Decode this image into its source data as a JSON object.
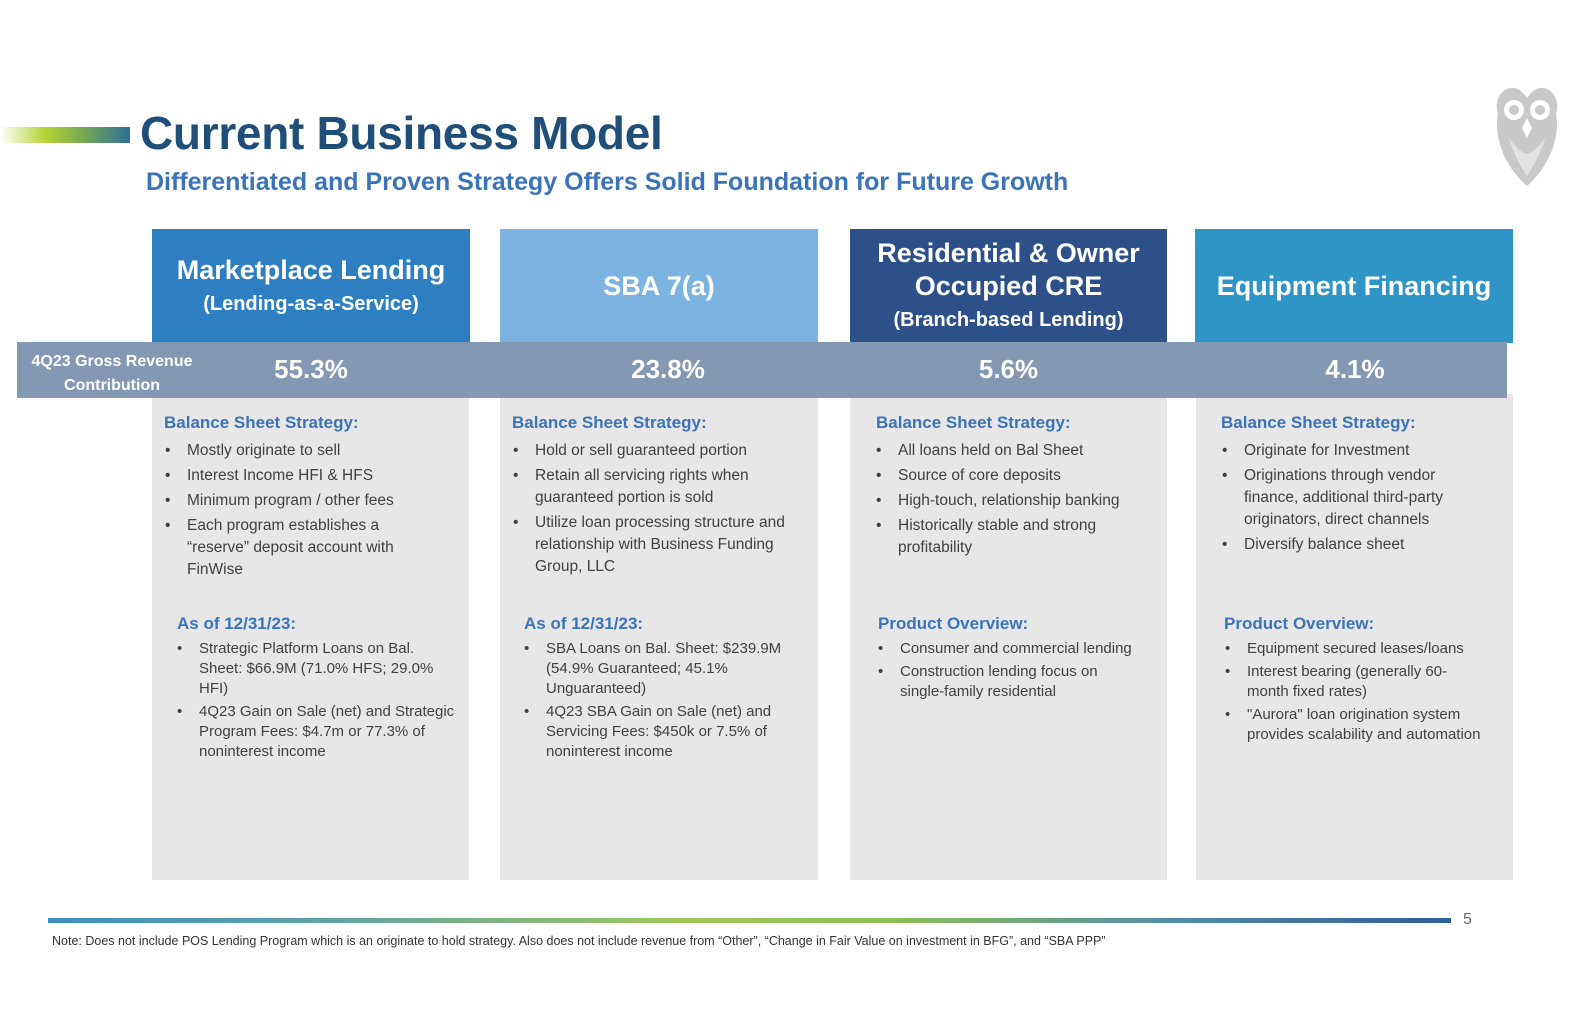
{
  "header": {
    "title": "Current Business Model",
    "subtitle": "Differentiated and Proven Strategy Offers Solid Foundation for Future Growth"
  },
  "band": {
    "label": "4Q23 Gross Revenue Contribution"
  },
  "colors": {
    "marketplace": "#2e7fc1",
    "sba": "#7db3e0",
    "residential": "#2e5089",
    "equipment": "#2f95c7",
    "band": "#8398b2",
    "panel": "#e7e7e7",
    "accent_text": "#3b73b9"
  },
  "logo_icon": "owl-icon",
  "columns": [
    {
      "title": "Marketplace Lending",
      "subtitle": "(Lending-as-a-Service)",
      "revenue": "55.3%",
      "strategy_title": "Balance Sheet Strategy:",
      "strategy": [
        "Mostly originate to sell",
        "Interest Income HFI & HFS",
        "Minimum program / other fees",
        "Each program establishes a “reserve” deposit account with FinWise"
      ],
      "detail_title": "As of 12/31/23:",
      "details": [
        "Strategic Platform Loans on Bal. Sheet: $66.9M (71.0% HFS; 29.0% HFI)",
        "4Q23 Gain on Sale (net) and Strategic Program Fees: $4.7m or 77.3% of noninterest income"
      ]
    },
    {
      "title": "SBA 7(a)",
      "subtitle": "",
      "revenue": "23.8%",
      "strategy_title": "Balance Sheet Strategy:",
      "strategy": [
        "Hold or sell guaranteed portion",
        "Retain all servicing rights when guaranteed portion is sold",
        "Utilize loan processing structure and relationship with Business Funding Group, LLC"
      ],
      "detail_title": "As of 12/31/23:",
      "details": [
        "SBA Loans on Bal. Sheet: $239.9M (54.9% Guaranteed; 45.1% Unguaranteed)",
        "4Q23 SBA Gain on Sale (net) and Servicing Fees: $450k or 7.5% of noninterest income"
      ]
    },
    {
      "title": "Residential & Owner Occupied CRE",
      "subtitle": "(Branch-based Lending)",
      "revenue": "5.6%",
      "strategy_title": "Balance Sheet Strategy:",
      "strategy": [
        "All loans held on Bal Sheet",
        "Source of core deposits",
        "High-touch, relationship banking",
        "Historically stable and strong profitability"
      ],
      "detail_title": "Product Overview:",
      "details": [
        "Consumer and commercial lending",
        "Construction lending focus on single-family residential"
      ]
    },
    {
      "title": "Equipment Financing",
      "subtitle": "",
      "revenue": "4.1%",
      "strategy_title": "Balance Sheet Strategy:",
      "strategy": [
        "Originate for Investment",
        "Originations through vendor finance, additional third-party originators, direct channels",
        "Diversify balance sheet"
      ],
      "detail_title": "Product Overview:",
      "details": [
        "Equipment secured leases/loans",
        "Interest bearing (generally 60-month fixed rates)",
        "\"Aurora\" loan origination system provides scalability and automation"
      ]
    }
  ],
  "footer": {
    "page_number": "5",
    "note": "Note: Does not include POS Lending Program which is an originate to hold strategy. Also does not include revenue from “Other”, “Change in Fair Value on investment in BFG”, and “SBA PPP”"
  }
}
